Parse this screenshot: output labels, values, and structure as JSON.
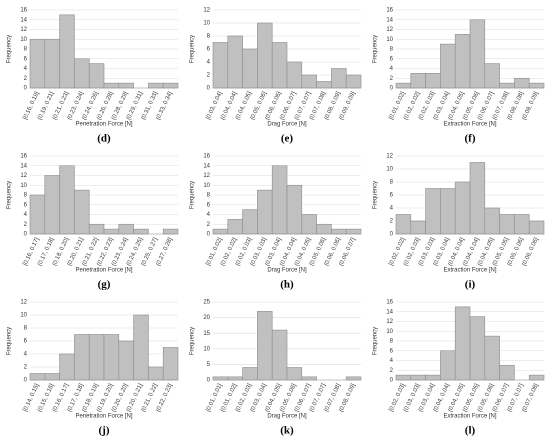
{
  "chart_data": [
    {
      "type": "bar",
      "caption": "(d)",
      "xlabel": "Penetration Force [N]",
      "ylabel": "Frequency",
      "categories": [
        "[0.16, 0.19]",
        "(0.19, 0.21]",
        "(0.21, 0.23]",
        "(0.23, 0.24]",
        "(0.24, 0.26]",
        "(0.26, 0.28]",
        "(0.28, 0.29]",
        "(0.29, 0.31]",
        "(0.31, 0.33]",
        "(0.33, 0.34]"
      ],
      "values": [
        10,
        10,
        15,
        6,
        5,
        1,
        1,
        0,
        1,
        1
      ],
      "color": "#c0c0c0",
      "ylim": [
        0,
        16
      ],
      "yticks": [
        0,
        2,
        4,
        6,
        8,
        10,
        12,
        14,
        16
      ],
      "grid": true
    },
    {
      "type": "bar",
      "caption": "(e)",
      "xlabel": "Drag Force [N]",
      "ylabel": "Frequency",
      "categories": [
        "[0.03, 0.04]",
        "(0.04, 0.04]",
        "(0.04, 0.05]",
        "(0.05, 0.06]",
        "(0.06, 0.06]",
        "(0.06, 0.07]",
        "(0.07, 0.07]",
        "(0.07, 0.08]",
        "(0.08, 0.09]",
        "(0.09, 0.09]"
      ],
      "values": [
        7,
        8,
        6,
        10,
        7,
        4,
        2,
        1,
        3,
        2
      ],
      "color": "#c0c0c0",
      "ylim": [
        0,
        12
      ],
      "yticks": [
        0,
        2,
        4,
        6,
        8,
        10,
        12
      ],
      "grid": true
    },
    {
      "type": "bar",
      "caption": "(f)",
      "xlabel": "Extraction Force [N]",
      "ylabel": "Frequency",
      "categories": [
        "[0.01, 0.02]",
        "(0.02, 0.02]",
        "(0.02, 0.03]",
        "(0.03, 0.04]",
        "(0.04, 0.05]",
        "(0.05, 0.06]",
        "(0.06, 0.07]",
        "(0.07, 0.08]",
        "(0.08, 0.08]",
        "(0.08, 0.09]"
      ],
      "values": [
        1,
        3,
        3,
        9,
        11,
        14,
        5,
        1,
        2,
        1
      ],
      "color": "#c0c0c0",
      "ylim": [
        0,
        16
      ],
      "yticks": [
        0,
        2,
        4,
        6,
        8,
        10,
        12,
        14,
        16
      ],
      "grid": true
    },
    {
      "type": "bar",
      "caption": "(g)",
      "xlabel": "Penetration Force [N]",
      "ylabel": "Frequency",
      "categories": [
        "[0.16, 0.17]",
        "(0.17, 0.18]",
        "(0.18, 0.20]",
        "(0.20, 0.21]",
        "(0.21, 0.22]",
        "(0.22, 0.23]",
        "(0.23, 0.24]",
        "(0.24, 0.25]",
        "(0.25, 0.27]",
        "(0.27, 0.28]"
      ],
      "values": [
        8,
        12,
        14,
        9,
        2,
        1,
        2,
        1,
        0,
        1
      ],
      "color": "#c0c0c0",
      "ylim": [
        0,
        16
      ],
      "yticks": [
        0,
        2,
        4,
        6,
        8,
        10,
        12,
        14,
        16
      ],
      "grid": true
    },
    {
      "type": "bar",
      "caption": "(h)",
      "xlabel": "Drag Force [N]",
      "ylabel": "Frequency",
      "categories": [
        "[0.01, 0.02]",
        "(0.02, 0.02]",
        "(0.02, 0.03]",
        "(0.03, 0.03]",
        "(0.03, 0.04]",
        "(0.04, 0.04]",
        "(0.04, 0.05]",
        "(0.05, 0.06]",
        "(0.06, 0.06]",
        "(0.06, 0.07]"
      ],
      "values": [
        1,
        3,
        5,
        9,
        14,
        10,
        4,
        2,
        1,
        1
      ],
      "color": "#c0c0c0",
      "ylim": [
        0,
        16
      ],
      "yticks": [
        0,
        2,
        4,
        6,
        8,
        10,
        12,
        14,
        16
      ],
      "grid": true
    },
    {
      "type": "bar",
      "caption": "(i)",
      "xlabel": "Extraction Force [N]",
      "ylabel": "Frequency",
      "categories": [
        "[0.02, 0.02]",
        "(0.02, 0.03]",
        "(0.03, 0.03]",
        "(0.03, 0.04]",
        "(0.04, 0.04]",
        "(0.04, 0.04]",
        "(0.04, 0.05]",
        "(0.05, 0.05]",
        "(0.05, 0.06]",
        "(0.06, 0.06]"
      ],
      "values": [
        3,
        2,
        7,
        7,
        8,
        11,
        4,
        3,
        3,
        2
      ],
      "color": "#c0c0c0",
      "ylim": [
        0,
        12
      ],
      "yticks": [
        0,
        2,
        4,
        6,
        8,
        10,
        12
      ],
      "grid": true
    },
    {
      "type": "bar",
      "caption": "(j)",
      "xlabel": "Penetration Force [N]",
      "ylabel": "Frequency",
      "categories": [
        "[0.14, 0.15]",
        "(0.15, 0.16]",
        "(0.16, 0.17]",
        "(0.17, 0.18]",
        "(0.18, 0.19]",
        "(0.19, 0.20]",
        "(0.20, 0.20]",
        "(0.20, 0.21]",
        "(0.21, 0.22]",
        "(0.22, 0.23]"
      ],
      "values": [
        1,
        1,
        4,
        7,
        7,
        7,
        6,
        10,
        2,
        5
      ],
      "color": "#c0c0c0",
      "ylim": [
        0,
        12
      ],
      "yticks": [
        0,
        2,
        4,
        6,
        8,
        10,
        12
      ],
      "grid": true
    },
    {
      "type": "bar",
      "caption": "(k)",
      "xlabel": "Drag Force [N]",
      "ylabel": "Frequency",
      "categories": [
        "[0.01, 0.01]",
        "(0.01, 0.02]",
        "(0.02, 0.03]",
        "(0.03, 0.04]",
        "(0.04, 0.05]",
        "(0.05, 0.06]",
        "(0.06, 0.07]",
        "(0.07, 0.07]",
        "(0.07, 0.08]",
        "(0.08, 0.09]"
      ],
      "values": [
        1,
        1,
        4,
        22,
        16,
        4,
        1,
        0,
        0,
        1
      ],
      "color": "#c0c0c0",
      "ylim": [
        0,
        25
      ],
      "yticks": [
        0,
        5,
        10,
        15,
        20,
        25
      ],
      "grid": true
    },
    {
      "type": "bar",
      "caption": "(l)",
      "xlabel": "Extraction Force [N]",
      "ylabel": "Frequency",
      "categories": [
        "[0.02, 0.03]",
        "(0.03, 0.03]",
        "(0.03, 0.04]",
        "(0.04, 0.04]",
        "(0.04, 0.05]",
        "(0.05, 0.05]",
        "(0.05, 0.06]",
        "(0.06, 0.07]",
        "(0.07, 0.07]",
        "(0.07, 0.08]"
      ],
      "values": [
        1,
        1,
        1,
        6,
        15,
        13,
        9,
        3,
        0,
        1
      ],
      "color": "#c0c0c0",
      "ylim": [
        0,
        16
      ],
      "yticks": [
        0,
        2,
        4,
        6,
        8,
        10,
        12,
        14,
        16
      ],
      "grid": true
    }
  ]
}
